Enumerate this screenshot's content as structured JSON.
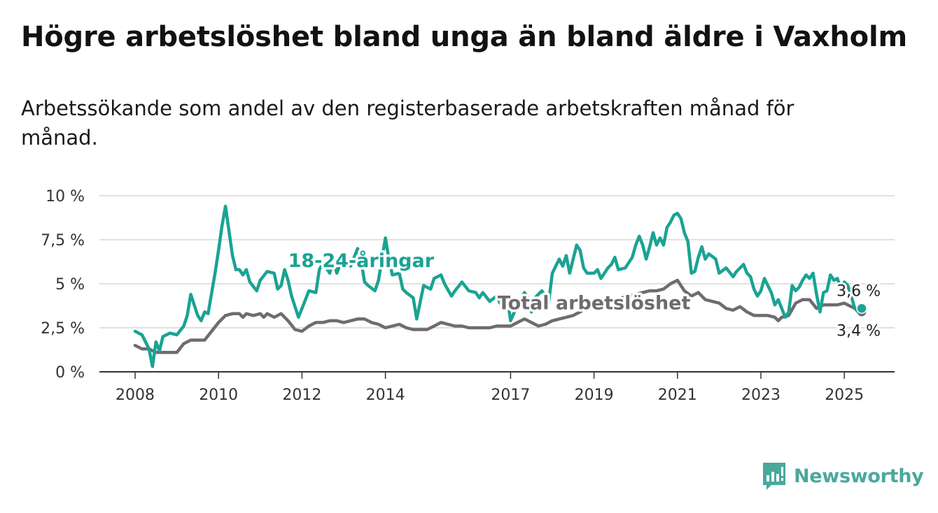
{
  "header": {
    "title": "Högre arbetslöshet bland unga än bland äldre i Vaxholm",
    "subtitle": "Arbetssökande som andel av den registerbaserade arbetskraften månad för månad."
  },
  "brand": {
    "name": "Newsworthy",
    "icon": "newsworthy-logo-icon",
    "color": "#4aa89c"
  },
  "chart_data": {
    "type": "line",
    "title": "Högre arbetslöshet bland unga än bland äldre i Vaxholm",
    "subtitle": "Arbetssökande som andel av den registerbaserade arbetskraften månad för månad.",
    "xlabel": "",
    "ylabel": "",
    "xlim": [
      "2008-01",
      "2026-01"
    ],
    "ylim": [
      0,
      10
    ],
    "grid": true,
    "y_ticks": [
      {
        "value": 0,
        "label": "0 %"
      },
      {
        "value": 2.5,
        "label": "2,5 %"
      },
      {
        "value": 5,
        "label": "5 %"
      },
      {
        "value": 7.5,
        "label": "7,5 %"
      },
      {
        "value": 10,
        "label": "10 %"
      }
    ],
    "x_ticks": [
      {
        "value": "2008-01",
        "label": "2008"
      },
      {
        "value": "2010-01",
        "label": "2010"
      },
      {
        "value": "2012-01",
        "label": "2012"
      },
      {
        "value": "2014-01",
        "label": "2014"
      },
      {
        "value": "2017-01",
        "label": "2017"
      },
      {
        "value": "2019-01",
        "label": "2019"
      },
      {
        "value": "2021-01",
        "label": "2021"
      },
      {
        "value": "2023-01",
        "label": "2023"
      },
      {
        "value": "2025-01",
        "label": "2025"
      }
    ],
    "series": [
      {
        "name": "18-24-åringar",
        "color": "#1aa393",
        "end_label": "3,6 %",
        "points": [
          [
            "2008-01",
            2.3
          ],
          [
            "2008-03",
            2.1
          ],
          [
            "2008-05",
            1.3
          ],
          [
            "2008-06",
            0.3
          ],
          [
            "2008-07",
            1.7
          ],
          [
            "2008-08",
            1.2
          ],
          [
            "2008-09",
            2.0
          ],
          [
            "2008-11",
            2.2
          ],
          [
            "2009-01",
            2.1
          ],
          [
            "2009-03",
            2.6
          ],
          [
            "2009-04",
            3.2
          ],
          [
            "2009-05",
            4.4
          ],
          [
            "2009-07",
            3.2
          ],
          [
            "2009-08",
            2.9
          ],
          [
            "2009-09",
            3.4
          ],
          [
            "2009-10",
            3.3
          ],
          [
            "2009-12",
            5.6
          ],
          [
            "2010-01",
            6.9
          ],
          [
            "2010-02",
            8.3
          ],
          [
            "2010-03",
            9.4
          ],
          [
            "2010-04",
            8.0
          ],
          [
            "2010-05",
            6.6
          ],
          [
            "2010-06",
            5.8
          ],
          [
            "2010-07",
            5.8
          ],
          [
            "2010-08",
            5.5
          ],
          [
            "2010-09",
            5.8
          ],
          [
            "2010-10",
            5.1
          ],
          [
            "2010-12",
            4.6
          ],
          [
            "2011-01",
            5.2
          ],
          [
            "2011-03",
            5.7
          ],
          [
            "2011-05",
            5.6
          ],
          [
            "2011-06",
            4.7
          ],
          [
            "2011-07",
            4.9
          ],
          [
            "2011-08",
            5.8
          ],
          [
            "2011-09",
            5.2
          ],
          [
            "2011-10",
            4.3
          ],
          [
            "2011-12",
            3.1
          ],
          [
            "2012-01",
            3.6
          ],
          [
            "2012-03",
            4.6
          ],
          [
            "2012-05",
            4.5
          ],
          [
            "2012-06",
            5.8
          ],
          [
            "2012-07",
            6.2
          ],
          [
            "2012-09",
            5.6
          ],
          [
            "2012-10",
            6.4
          ],
          [
            "2012-11",
            5.6
          ],
          [
            "2013-01",
            6.6
          ],
          [
            "2013-03",
            6.0
          ],
          [
            "2013-05",
            7.0
          ],
          [
            "2013-06",
            6.3
          ],
          [
            "2013-07",
            5.1
          ],
          [
            "2013-08",
            4.9
          ],
          [
            "2013-10",
            4.6
          ],
          [
            "2013-11",
            5.2
          ],
          [
            "2014-01",
            7.6
          ],
          [
            "2014-02",
            6.4
          ],
          [
            "2014-03",
            5.5
          ],
          [
            "2014-05",
            5.6
          ],
          [
            "2014-06",
            4.7
          ],
          [
            "2014-07",
            4.5
          ],
          [
            "2014-09",
            4.2
          ],
          [
            "2014-10",
            3.0
          ],
          [
            "2014-12",
            4.9
          ],
          [
            "2015-02",
            4.7
          ],
          [
            "2015-03",
            5.3
          ],
          [
            "2015-05",
            5.5
          ],
          [
            "2015-06",
            5.0
          ],
          [
            "2015-08",
            4.3
          ],
          [
            "2015-09",
            4.6
          ],
          [
            "2015-11",
            5.1
          ],
          [
            "2016-01",
            4.6
          ],
          [
            "2016-03",
            4.5
          ],
          [
            "2016-04",
            4.2
          ],
          [
            "2016-05",
            4.5
          ],
          [
            "2016-07",
            4.0
          ],
          [
            "2016-09",
            4.3
          ],
          [
            "2016-10",
            3.9
          ],
          [
            "2016-12",
            4.3
          ],
          [
            "2017-01",
            2.9
          ],
          [
            "2017-03",
            3.8
          ],
          [
            "2017-05",
            4.5
          ],
          [
            "2017-06",
            4.2
          ],
          [
            "2017-07",
            3.4
          ],
          [
            "2017-08",
            4.2
          ],
          [
            "2017-10",
            4.6
          ],
          [
            "2017-12",
            4.0
          ],
          [
            "2018-01",
            5.6
          ],
          [
            "2018-03",
            6.4
          ],
          [
            "2018-04",
            6.0
          ],
          [
            "2018-05",
            6.6
          ],
          [
            "2018-06",
            5.6
          ],
          [
            "2018-07",
            6.4
          ],
          [
            "2018-08",
            7.2
          ],
          [
            "2018-09",
            6.9
          ],
          [
            "2018-10",
            5.9
          ],
          [
            "2018-11",
            5.6
          ],
          [
            "2019-01",
            5.6
          ],
          [
            "2019-02",
            5.8
          ],
          [
            "2019-03",
            5.3
          ],
          [
            "2019-05",
            5.9
          ],
          [
            "2019-06",
            6.1
          ],
          [
            "2019-07",
            6.5
          ],
          [
            "2019-08",
            5.8
          ],
          [
            "2019-10",
            5.9
          ],
          [
            "2019-12",
            6.5
          ],
          [
            "2020-01",
            7.2
          ],
          [
            "2020-02",
            7.7
          ],
          [
            "2020-03",
            7.2
          ],
          [
            "2020-04",
            6.4
          ],
          [
            "2020-05",
            7.1
          ],
          [
            "2020-06",
            7.9
          ],
          [
            "2020-07",
            7.2
          ],
          [
            "2020-08",
            7.6
          ],
          [
            "2020-09",
            7.2
          ],
          [
            "2020-10",
            8.2
          ],
          [
            "2020-11",
            8.5
          ],
          [
            "2020-12",
            8.9
          ],
          [
            "2021-01",
            9.0
          ],
          [
            "2021-02",
            8.7
          ],
          [
            "2021-03",
            7.9
          ],
          [
            "2021-04",
            7.4
          ],
          [
            "2021-05",
            5.6
          ],
          [
            "2021-06",
            5.7
          ],
          [
            "2021-07",
            6.5
          ],
          [
            "2021-08",
            7.1
          ],
          [
            "2021-09",
            6.4
          ],
          [
            "2021-10",
            6.7
          ],
          [
            "2021-12",
            6.4
          ],
          [
            "2022-01",
            5.6
          ],
          [
            "2022-03",
            5.9
          ],
          [
            "2022-05",
            5.4
          ],
          [
            "2022-06",
            5.7
          ],
          [
            "2022-08",
            6.1
          ],
          [
            "2022-09",
            5.6
          ],
          [
            "2022-10",
            5.4
          ],
          [
            "2022-11",
            4.7
          ],
          [
            "2022-12",
            4.3
          ],
          [
            "2023-01",
            4.6
          ],
          [
            "2023-02",
            5.3
          ],
          [
            "2023-03",
            4.9
          ],
          [
            "2023-04",
            4.5
          ],
          [
            "2023-05",
            3.8
          ],
          [
            "2023-06",
            4.1
          ],
          [
            "2023-07",
            3.6
          ],
          [
            "2023-08",
            3.1
          ],
          [
            "2023-09",
            3.4
          ],
          [
            "2023-10",
            4.9
          ],
          [
            "2023-11",
            4.6
          ],
          [
            "2023-12",
            4.8
          ],
          [
            "2024-01",
            5.2
          ],
          [
            "2024-02",
            5.5
          ],
          [
            "2024-03",
            5.3
          ],
          [
            "2024-04",
            5.6
          ],
          [
            "2024-05",
            4.4
          ],
          [
            "2024-06",
            3.4
          ],
          [
            "2024-07",
            4.5
          ],
          [
            "2024-08",
            4.6
          ],
          [
            "2024-09",
            5.5
          ],
          [
            "2024-10",
            5.2
          ],
          [
            "2024-11",
            5.3
          ],
          [
            "2024-12",
            4.7
          ],
          [
            "2025-01",
            5.1
          ],
          [
            "2025-02",
            4.9
          ],
          [
            "2025-03",
            4.3
          ],
          [
            "2025-04",
            3.6
          ],
          [
            "2025-05",
            3.4
          ],
          [
            "2025-06",
            3.6
          ]
        ]
      },
      {
        "name": "Total arbetslöshet",
        "color": "#6f6b70",
        "end_label": "3,4 %",
        "points": [
          [
            "2008-01",
            1.5
          ],
          [
            "2008-03",
            1.3
          ],
          [
            "2008-05",
            1.3
          ],
          [
            "2008-07",
            1.1
          ],
          [
            "2008-09",
            1.1
          ],
          [
            "2008-11",
            1.1
          ],
          [
            "2009-01",
            1.1
          ],
          [
            "2009-03",
            1.6
          ],
          [
            "2009-05",
            1.8
          ],
          [
            "2009-07",
            1.8
          ],
          [
            "2009-09",
            1.8
          ],
          [
            "2009-11",
            2.3
          ],
          [
            "2010-01",
            2.8
          ],
          [
            "2010-03",
            3.2
          ],
          [
            "2010-05",
            3.3
          ],
          [
            "2010-07",
            3.3
          ],
          [
            "2010-08",
            3.1
          ],
          [
            "2010-09",
            3.3
          ],
          [
            "2010-11",
            3.2
          ],
          [
            "2011-01",
            3.3
          ],
          [
            "2011-02",
            3.1
          ],
          [
            "2011-03",
            3.3
          ],
          [
            "2011-05",
            3.1
          ],
          [
            "2011-06",
            3.2
          ],
          [
            "2011-07",
            3.3
          ],
          [
            "2011-09",
            2.9
          ],
          [
            "2011-11",
            2.4
          ],
          [
            "2012-01",
            2.3
          ],
          [
            "2012-03",
            2.6
          ],
          [
            "2012-05",
            2.8
          ],
          [
            "2012-07",
            2.8
          ],
          [
            "2012-09",
            2.9
          ],
          [
            "2012-11",
            2.9
          ],
          [
            "2013-01",
            2.8
          ],
          [
            "2013-03",
            2.9
          ],
          [
            "2013-05",
            3.0
          ],
          [
            "2013-07",
            3.0
          ],
          [
            "2013-09",
            2.8
          ],
          [
            "2013-11",
            2.7
          ],
          [
            "2014-01",
            2.5
          ],
          [
            "2014-03",
            2.6
          ],
          [
            "2014-05",
            2.7
          ],
          [
            "2014-07",
            2.5
          ],
          [
            "2014-09",
            2.4
          ],
          [
            "2014-11",
            2.4
          ],
          [
            "2015-01",
            2.4
          ],
          [
            "2015-03",
            2.6
          ],
          [
            "2015-05",
            2.8
          ],
          [
            "2015-07",
            2.7
          ],
          [
            "2015-09",
            2.6
          ],
          [
            "2015-11",
            2.6
          ],
          [
            "2016-01",
            2.5
          ],
          [
            "2016-03",
            2.5
          ],
          [
            "2016-05",
            2.5
          ],
          [
            "2016-07",
            2.5
          ],
          [
            "2016-09",
            2.6
          ],
          [
            "2016-11",
            2.6
          ],
          [
            "2017-01",
            2.6
          ],
          [
            "2017-03",
            2.8
          ],
          [
            "2017-05",
            3.0
          ],
          [
            "2017-07",
            2.8
          ],
          [
            "2017-09",
            2.6
          ],
          [
            "2017-11",
            2.7
          ],
          [
            "2018-01",
            2.9
          ],
          [
            "2018-03",
            3.0
          ],
          [
            "2018-05",
            3.1
          ],
          [
            "2018-07",
            3.2
          ],
          [
            "2018-09",
            3.4
          ],
          [
            "2018-11",
            3.7
          ],
          [
            "2019-01",
            3.9
          ],
          [
            "2019-03",
            4.0
          ],
          [
            "2019-05",
            4.0
          ],
          [
            "2019-07",
            4.1
          ],
          [
            "2019-09",
            4.2
          ],
          [
            "2019-11",
            4.3
          ],
          [
            "2020-01",
            4.4
          ],
          [
            "2020-03",
            4.5
          ],
          [
            "2020-05",
            4.6
          ],
          [
            "2020-07",
            4.6
          ],
          [
            "2020-09",
            4.7
          ],
          [
            "2020-11",
            5.0
          ],
          [
            "2021-01",
            5.2
          ],
          [
            "2021-03",
            4.6
          ],
          [
            "2021-05",
            4.3
          ],
          [
            "2021-07",
            4.5
          ],
          [
            "2021-09",
            4.1
          ],
          [
            "2021-11",
            4.0
          ],
          [
            "2022-01",
            3.9
          ],
          [
            "2022-03",
            3.6
          ],
          [
            "2022-05",
            3.5
          ],
          [
            "2022-07",
            3.7
          ],
          [
            "2022-09",
            3.4
          ],
          [
            "2022-11",
            3.2
          ],
          [
            "2023-01",
            3.2
          ],
          [
            "2023-03",
            3.2
          ],
          [
            "2023-05",
            3.1
          ],
          [
            "2023-06",
            2.9
          ],
          [
            "2023-07",
            3.1
          ],
          [
            "2023-09",
            3.2
          ],
          [
            "2023-11",
            3.9
          ],
          [
            "2024-01",
            4.1
          ],
          [
            "2024-03",
            4.1
          ],
          [
            "2024-05",
            3.6
          ],
          [
            "2024-07",
            3.8
          ],
          [
            "2024-09",
            3.8
          ],
          [
            "2024-11",
            3.8
          ],
          [
            "2025-01",
            3.9
          ],
          [
            "2025-03",
            3.7
          ],
          [
            "2025-05",
            3.5
          ],
          [
            "2025-06",
            3.4
          ]
        ]
      }
    ],
    "annotations": [
      {
        "text": "18-24-åringar",
        "series": "18-24-åringar",
        "x": "2013-06",
        "y": 6.3
      },
      {
        "text": "Total arbetslöshet",
        "series": "Total arbetslöshet",
        "x": "2019-01",
        "y": 3.9
      }
    ]
  }
}
